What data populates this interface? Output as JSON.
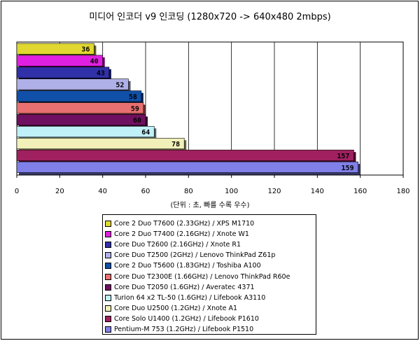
{
  "chart_data": {
    "type": "bar",
    "orientation": "horizontal",
    "title": "미디어 인코더 v9 인코딩 (1280x720 -> 640x480 2mbps)",
    "xlabel": "(단위 : 초, 빠를 수록 우수)",
    "xlim": [
      0,
      180
    ],
    "xticks": [
      "0",
      "20",
      "40",
      "60",
      "80",
      "100",
      "120",
      "140",
      "160",
      "180"
    ],
    "grid": true,
    "legend_position": "bottom",
    "categories": [
      "Core 2 Duo T7600 (2.33GHz) / XPS M1710",
      "Core 2 Duo T7400 (2.16GHz) / Xnote W1",
      "Core Duo T2600 (2.16GHz) / Xnote R1",
      "Core Duo T2500 (2GHz) / Lenovo ThinkPad Z61p",
      "Core 2 Duo T5600 (1.83GHz) / Toshiba A100",
      "Core Duo T2300E (1.66GHz) / Lenovo ThinkPad R60e",
      "Core Duo T2050 (1.6GHz) / Averatec 4371",
      "Turion 64 x2 TL-50 (1.6GHz) / Lifebook A3110",
      "Core Duo U2500 (1.2GHz) / Xnote A1",
      "Core Solo U1400 (1.2GHz) / Lifebook P1610",
      "Pentium-M 753 (1.2GHz) / Lifebook P1510"
    ],
    "values": [
      36,
      40,
      43,
      52,
      58,
      59,
      60,
      64,
      78,
      157,
      159
    ],
    "value_labels": [
      "36",
      "40",
      "43",
      "52",
      "58",
      "59",
      "60",
      "64",
      "78",
      "157",
      "159"
    ],
    "colors": [
      "#e0d830",
      "#e020e0",
      "#3030a8",
      "#b0b0e8",
      "#1050a8",
      "#e87070",
      "#701060",
      "#c0f0f8",
      "#f0f0b8",
      "#a02060",
      "#8080e8"
    ],
    "colors_dark": [
      "#606010",
      "#600060",
      "#101048",
      "#505068",
      "#082048",
      "#683030",
      "#300828",
      "#506868",
      "#686840",
      "#480828",
      "#383868"
    ]
  }
}
